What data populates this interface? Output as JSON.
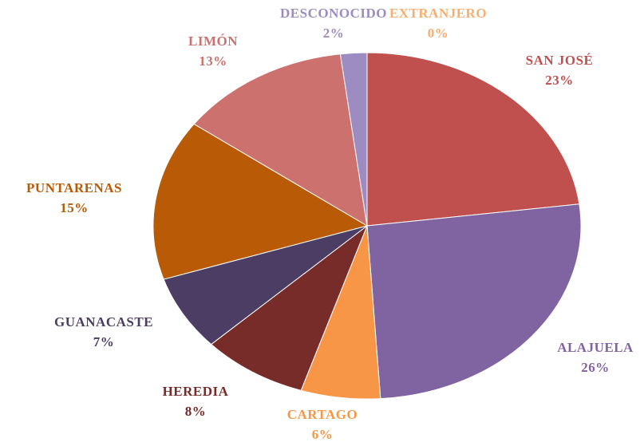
{
  "chart_data": {
    "type": "pie",
    "categories": [
      "SAN JOSÉ",
      "ALAJUELA",
      "CARTAGO",
      "HEREDIA",
      "GUANACASTE",
      "PUNTARENAS",
      "LIMÓN",
      "DESCONOCIDO",
      "EXTRANJERO"
    ],
    "values": [
      23,
      26,
      6,
      8,
      7,
      15,
      13,
      2,
      0
    ],
    "value_labels": [
      "23%",
      "26%",
      "6%",
      "8%",
      "7%",
      "15%",
      "13%",
      "2%",
      "0%"
    ],
    "colors": [
      "#c0504d",
      "#8064a2",
      "#f79646",
      "#772c2a",
      "#4b3d64",
      "#b85a06",
      "#cd716e",
      "#9d8cc2",
      "#f9ae6f"
    ]
  }
}
